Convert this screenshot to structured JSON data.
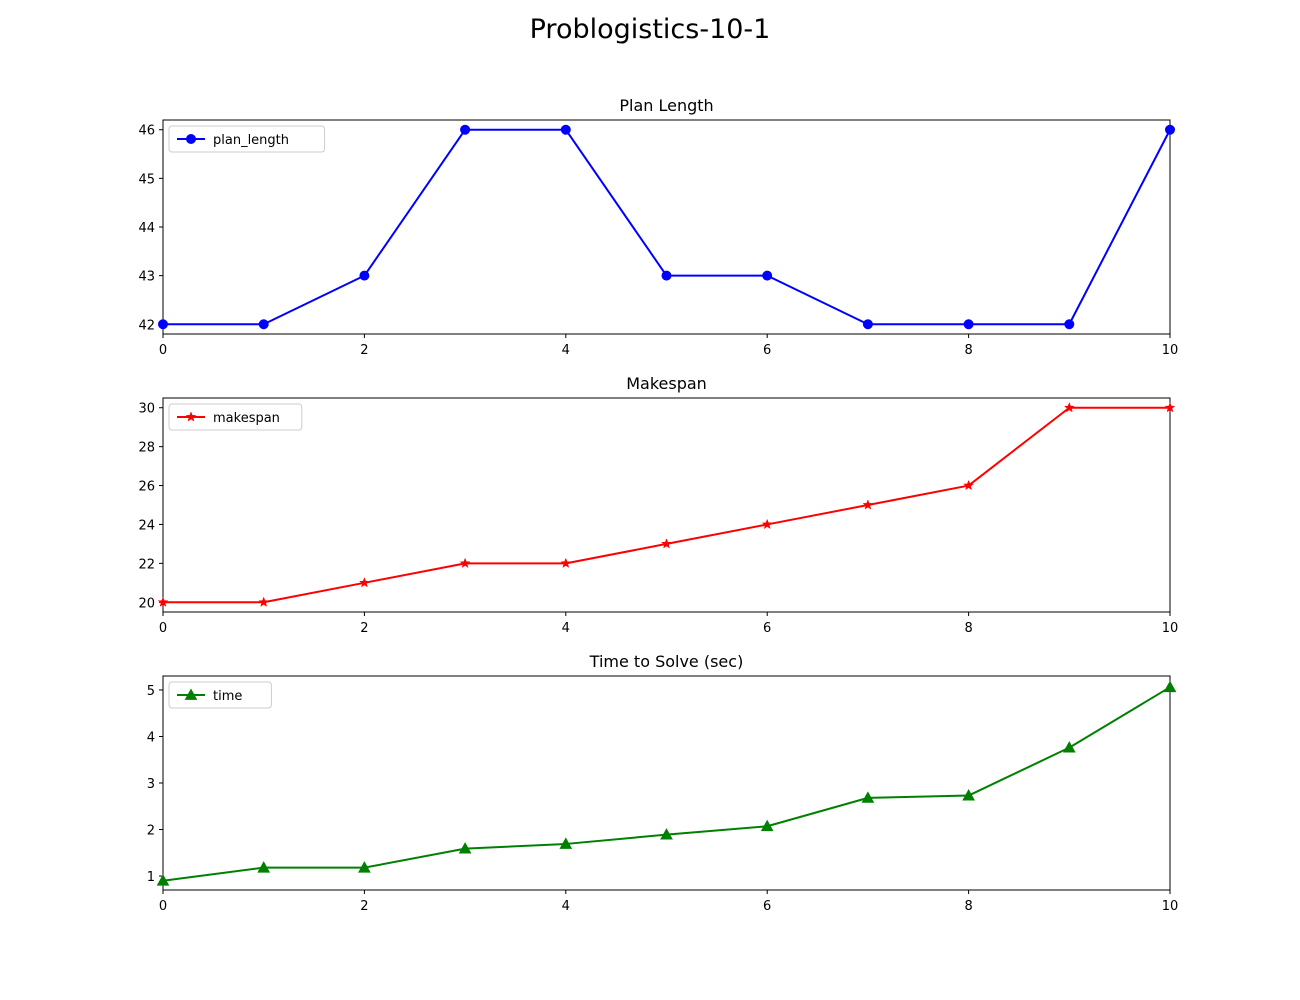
{
  "figure": {
    "title": "Problogistics-10-1"
  },
  "chart_data": [
    {
      "type": "line",
      "title": "Plan Length",
      "xlabel": "",
      "ylabel": "",
      "xlim": [
        0,
        10
      ],
      "ylim": [
        41.8,
        46.2
      ],
      "xticks": [
        0,
        2,
        4,
        6,
        8,
        10
      ],
      "yticks": [
        42,
        43,
        44,
        45,
        46
      ],
      "grid": false,
      "legend": "upper left",
      "series": [
        {
          "name": "plan_length",
          "color": "#0000ff",
          "marker": "circle",
          "x": [
            0,
            1,
            2,
            3,
            4,
            5,
            6,
            7,
            8,
            9,
            10
          ],
          "values": [
            42,
            42,
            43,
            46,
            46,
            43,
            43,
            42,
            42,
            42,
            46
          ]
        }
      ]
    },
    {
      "type": "line",
      "title": "Makespan",
      "xlabel": "",
      "ylabel": "",
      "xlim": [
        0,
        10
      ],
      "ylim": [
        19.5,
        30.5
      ],
      "xticks": [
        0,
        2,
        4,
        6,
        8,
        10
      ],
      "yticks": [
        20,
        22,
        24,
        26,
        28,
        30
      ],
      "grid": false,
      "legend": "upper left",
      "series": [
        {
          "name": "makespan",
          "color": "#ff0000",
          "marker": "star",
          "x": [
            0,
            1,
            2,
            3,
            4,
            5,
            6,
            7,
            8,
            9,
            10
          ],
          "values": [
            20,
            20,
            21,
            22,
            22,
            23,
            24,
            25,
            26,
            30,
            30
          ]
        }
      ]
    },
    {
      "type": "line",
      "title": "Time to Solve (sec)",
      "xlabel": "",
      "ylabel": "",
      "xlim": [
        0,
        10
      ],
      "ylim": [
        0.7,
        5.3
      ],
      "xticks": [
        0,
        2,
        4,
        6,
        8,
        10
      ],
      "yticks": [
        1,
        2,
        3,
        4,
        5
      ],
      "grid": false,
      "legend": "upper left",
      "series": [
        {
          "name": "time",
          "color": "#008000",
          "marker": "triangle",
          "x": [
            0,
            1,
            2,
            3,
            4,
            5,
            6,
            7,
            8,
            9,
            10
          ],
          "values": [
            0.9,
            1.18,
            1.18,
            1.59,
            1.69,
            1.89,
            2.07,
            2.68,
            2.73,
            3.76,
            5.06
          ]
        }
      ]
    }
  ]
}
